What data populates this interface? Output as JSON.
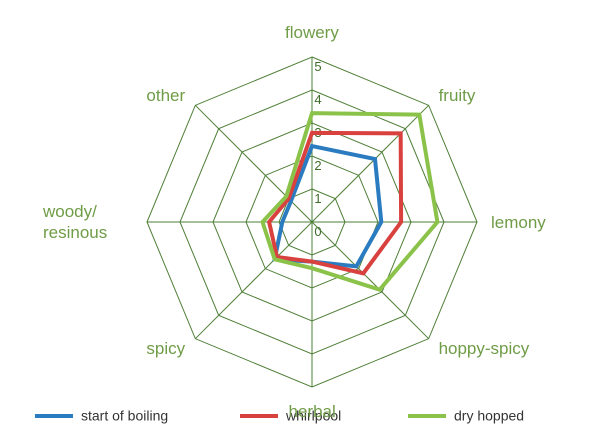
{
  "chart_data": {
    "type": "radar",
    "categories": [
      "flowery",
      "fruity",
      "lemony",
      "hoppy-spicy",
      "herbal",
      "spicy",
      "woody/ resinous",
      "other"
    ],
    "ylim": [
      0,
      5
    ],
    "yticks": [
      0,
      1,
      2,
      3,
      4,
      5
    ],
    "grid_color": "#4e7f37",
    "series": [
      {
        "name": "start of boiling",
        "color": "#2a7bc0",
        "values": [
          2.3,
          2.7,
          2.1,
          1.9,
          1.2,
          1.6,
          0.9,
          0.9
        ]
      },
      {
        "name": "whirlpool",
        "color": "#d9413f",
        "values": [
          2.7,
          3.8,
          2.7,
          2.2,
          1.2,
          1.5,
          1.3,
          1.0
        ]
      },
      {
        "name": "dry hopped",
        "color": "#8bc34a",
        "values": [
          3.3,
          4.6,
          3.8,
          2.9,
          1.4,
          1.6,
          1.5,
          1.1
        ]
      }
    ]
  }
}
